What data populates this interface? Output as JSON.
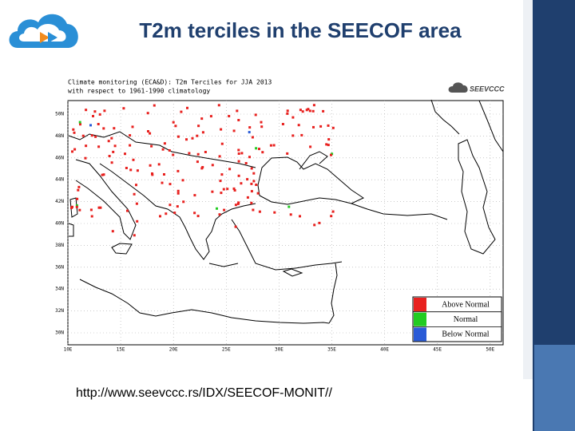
{
  "slide": {
    "title": "T2m terciles in the SEECOF area",
    "url": "http://www.seevccc.rs/IDX/SEECOF-MONIT//"
  },
  "map": {
    "title_lines": [
      "Climate monitoring (ECA&D): T2m Terciles for JJA 2013",
      "with respect to 1961-1990 climatology"
    ],
    "brand": "SEEVCCC",
    "lat_labels": [
      "50N",
      "48N",
      "46N",
      "44N",
      "42N",
      "40N",
      "38N",
      "36N",
      "34N",
      "32N",
      "30N"
    ],
    "lon_labels": [
      "10E",
      "15E",
      "20E",
      "25E",
      "30E",
      "35E",
      "40E",
      "45E",
      "50E"
    ],
    "legend": [
      {
        "label": "Above Normal",
        "color": "#e8211f"
      },
      {
        "label": "Normal",
        "color": "#22cc22"
      },
      {
        "label": "Below Normal",
        "color": "#2a5bd7"
      }
    ]
  }
}
